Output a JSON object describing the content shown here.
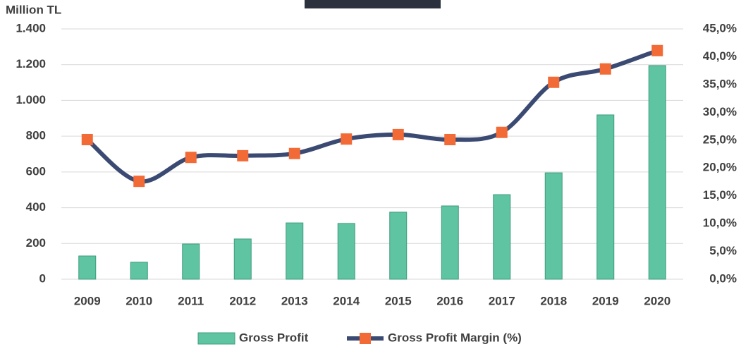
{
  "chart_data": {
    "type": "bar-line",
    "y_axis_label": "Million TL",
    "categories": [
      "2009",
      "2010",
      "2011",
      "2012",
      "2013",
      "2014",
      "2015",
      "2016",
      "2017",
      "2018",
      "2019",
      "2020"
    ],
    "series": [
      {
        "name": "Gross Profit",
        "type": "bar",
        "color": "#5fc4a2",
        "values": [
          130,
          95,
          197,
          225,
          315,
          312,
          375,
          410,
          473,
          595,
          919,
          1195
        ]
      },
      {
        "name": "Gross Profit Margin (%)",
        "type": "line",
        "axis": "y2",
        "color": "#3b4a72",
        "marker_color": "#f26a36",
        "values": [
          25.1,
          17.6,
          21.9,
          22.2,
          22.6,
          25.2,
          26.0,
          25.1,
          26.4,
          35.4,
          37.8,
          41.1
        ]
      }
    ],
    "ylim": [
      0,
      1400
    ],
    "yticks": [
      0,
      200,
      400,
      600,
      800,
      {
        "value": 1000,
        "label": "1.000"
      },
      {
        "value": 1200,
        "label": "1.200"
      },
      {
        "value": 1400,
        "label": "1.400"
      }
    ],
    "y2lim": [
      0,
      45
    ],
    "y2ticks": [
      {
        "value": 0,
        "label": "0,0%"
      },
      {
        "value": 5,
        "label": "5,0%"
      },
      {
        "value": 10,
        "label": "10,0%"
      },
      {
        "value": 15,
        "label": "15,0%"
      },
      {
        "value": 20,
        "label": "20,0%"
      },
      {
        "value": 25,
        "label": "25,0%"
      },
      {
        "value": 30,
        "label": "30,0%"
      },
      {
        "value": 35,
        "label": "35,0%"
      },
      {
        "value": 40,
        "label": "40,0%"
      },
      {
        "value": 45,
        "label": "45,0%"
      }
    ],
    "grid": true,
    "legend": "bottom"
  }
}
